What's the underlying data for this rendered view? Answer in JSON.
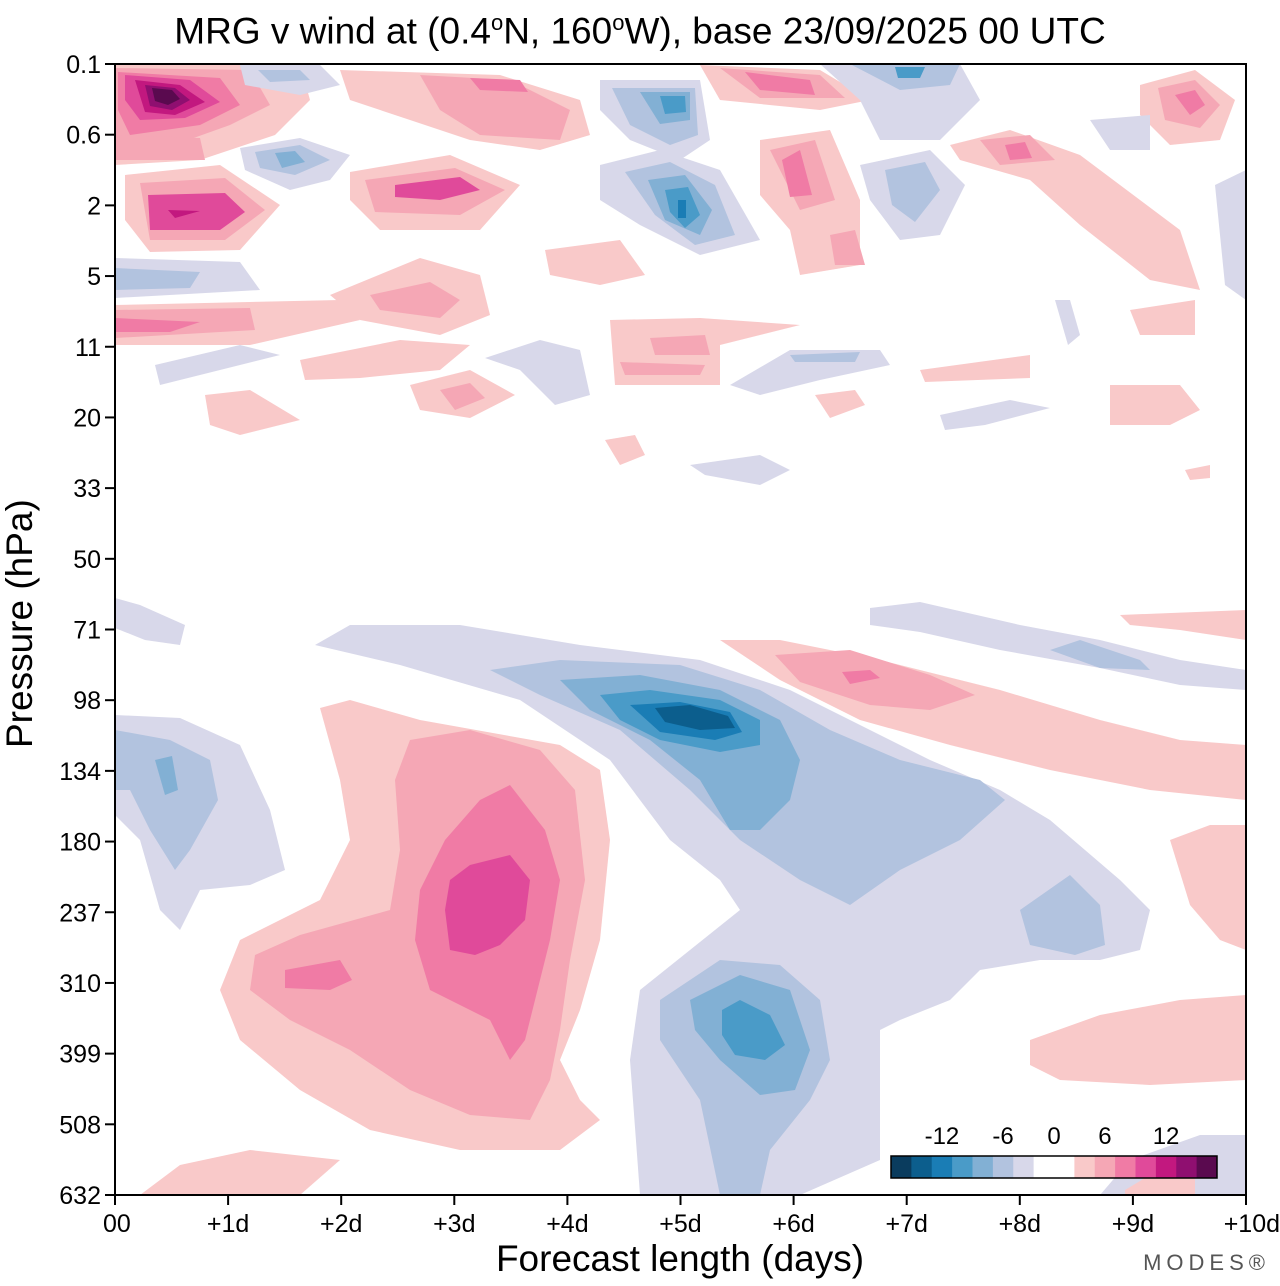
{
  "chart_data": {
    "type": "heatmap",
    "title": "MRG v wind at (0.4°N, 160°W),  base 23/09/2025  00 UTC",
    "title_parts": {
      "prefix": "MRG v wind at (0.4",
      "lat_sup": "o",
      "lat_suffix": "N, 160",
      "lon_sup": "o",
      "lon_suffix": "W),  base 23/09/2025  00 UTC"
    },
    "xlabel": "Forecast length (days)",
    "ylabel": "Pressure (hPa)",
    "x_ticks": [
      "00",
      "+1d",
      "+2d",
      "+3d",
      "+4d",
      "+5d",
      "+6d",
      "+7d",
      "+8d",
      "+9d",
      "+10d"
    ],
    "y_ticks": [
      "0.1",
      "0.6",
      "2",
      "5",
      "11",
      "20",
      "33",
      "50",
      "71",
      "98",
      "134",
      "180",
      "237",
      "310",
      "399",
      "508",
      "632"
    ],
    "xlim": [
      0,
      10
    ],
    "legend": {
      "labels": [
        "-12",
        "-6",
        "0",
        "6",
        "12"
      ],
      "colors": [
        "#0a3c5e",
        "#0c5e8d",
        "#1a7db5",
        "#4a9bc8",
        "#82b0d4",
        "#b2c3df",
        "#d8d8ea",
        "#ffffff",
        "#ffffff",
        "#f9c9c9",
        "#f5a7b5",
        "#f07ba5",
        "#e04a9a",
        "#c2187f",
        "#8f0f70",
        "#5a0a4f"
      ],
      "placement": "bottom-right"
    },
    "features": [
      {
        "day": 0.5,
        "level": "0.1",
        "level_to": "0.6",
        "sign": "positive",
        "peak": 14
      },
      {
        "day": 0.6,
        "level": "2",
        "sign": "positive",
        "peak": 10
      },
      {
        "day": 3.1,
        "level": "2",
        "sign": "positive",
        "peak": 9
      },
      {
        "day": 5.0,
        "level": "0.6",
        "level_to": "2",
        "sign": "negative",
        "peak": -8
      },
      {
        "day": 5.4,
        "level": "98",
        "sign": "negative",
        "peak": -10
      },
      {
        "day": 3.4,
        "level": "237",
        "sign": "positive",
        "peak": 10
      },
      {
        "day": 5.6,
        "level": "399",
        "sign": "negative",
        "peak": -8
      },
      {
        "day": 6.6,
        "level": "98",
        "sign": "positive",
        "peak": 6
      }
    ],
    "brand": "MODES®"
  }
}
